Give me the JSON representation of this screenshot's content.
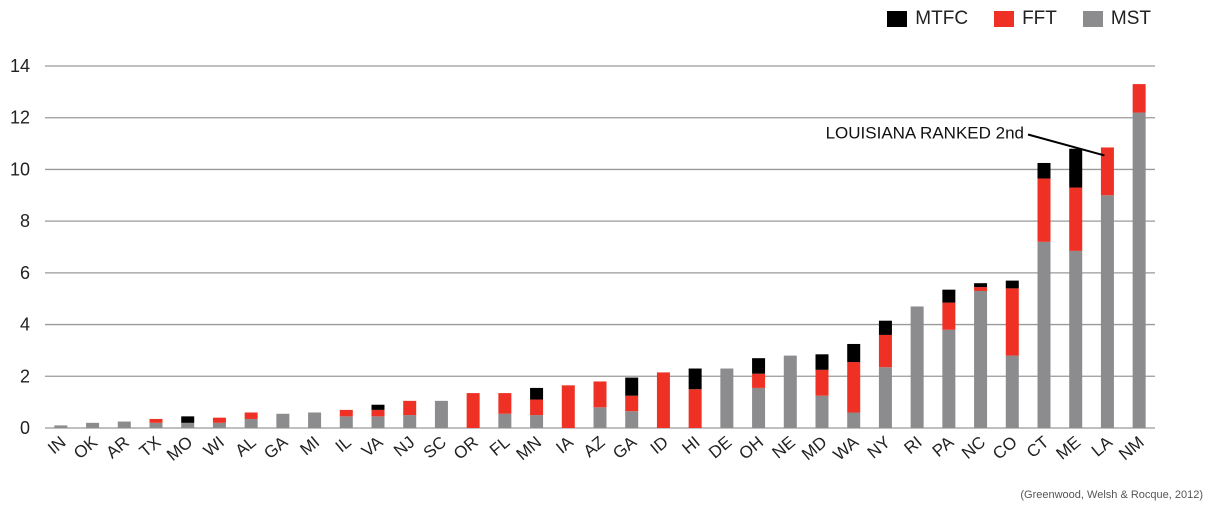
{
  "chart_data": {
    "type": "bar",
    "stacked": true,
    "categories": [
      "IN",
      "OK",
      "AR",
      "TX",
      "MO",
      "WI",
      "AL",
      "GA",
      "MI",
      "IL",
      "VA",
      "NJ",
      "SC",
      "OR",
      "FL",
      "MN",
      "IA",
      "AZ",
      "GA",
      "ID",
      "HI",
      "DE",
      "OH",
      "NE",
      "MD",
      "WA",
      "NY",
      "RI",
      "PA",
      "NC",
      "CO",
      "CT",
      "ME",
      "LA",
      "NM"
    ],
    "series": [
      {
        "name": "MST",
        "color": "#8c8c8e",
        "values": [
          0.1,
          0.2,
          0.25,
          0.2,
          0.2,
          0.2,
          0.35,
          0.55,
          0.6,
          0.45,
          0.45,
          0.5,
          1.05,
          0,
          0.55,
          0.5,
          0,
          0.8,
          0.65,
          0,
          0,
          2.3,
          1.55,
          2.8,
          1.25,
          0.6,
          2.35,
          4.7,
          3.8,
          5.3,
          2.8,
          7.2,
          6.85,
          9.0,
          12.2
        ]
      },
      {
        "name": "FFT",
        "color": "#ee3124",
        "values": [
          0,
          0,
          0,
          0.15,
          0,
          0.2,
          0.25,
          0,
          0,
          0.25,
          0.25,
          0.55,
          0,
          1.35,
          0.8,
          0.6,
          1.65,
          1.0,
          0.6,
          2.15,
          1.5,
          0,
          0.55,
          0,
          1.0,
          1.95,
          1.25,
          0,
          1.05,
          0.15,
          2.6,
          2.45,
          2.45,
          1.85,
          1.1
        ]
      },
      {
        "name": "MTFC",
        "color": "#000000",
        "values": [
          0,
          0,
          0,
          0,
          0.25,
          0,
          0,
          0,
          0,
          0,
          0.2,
          0,
          0,
          0,
          0,
          0.45,
          0,
          0,
          0.7,
          0,
          0.8,
          0,
          0.6,
          0,
          0.6,
          0.7,
          0.55,
          0,
          0.5,
          0.15,
          0.3,
          0.6,
          1.5,
          0,
          0
        ]
      }
    ],
    "ylim": [
      0,
      14
    ],
    "yticks": [
      0,
      2,
      4,
      6,
      8,
      10,
      12,
      14
    ],
    "grid": true,
    "legend": "top-right",
    "annotation": {
      "text": "LOUISIANA RANKED 2nd",
      "target": "LA"
    }
  },
  "legend": [
    {
      "label": "MTFC",
      "color": "#000000"
    },
    {
      "label": "FFT",
      "color": "#ee3124"
    },
    {
      "label": "MST",
      "color": "#8c8c8e"
    }
  ],
  "source": "(Greenwood, Welsh & Rocque, 2012)"
}
